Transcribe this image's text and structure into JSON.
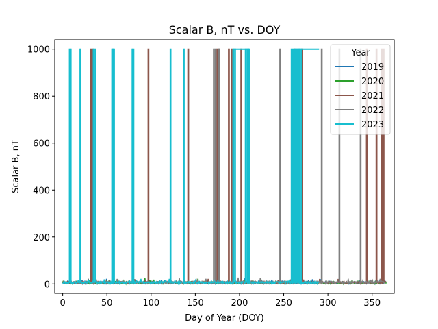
{
  "chart_data": {
    "type": "line",
    "title": "Scalar B, nT vs. DOY",
    "xlabel": "Day of Year (DOY)",
    "ylabel": "Scalar B, nT",
    "xlim": [
      -9,
      375
    ],
    "ylim": [
      -40,
      1040
    ],
    "xticks": [
      0,
      50,
      100,
      150,
      200,
      250,
      300,
      350
    ],
    "yticks": [
      0,
      200,
      400,
      600,
      800,
      1000
    ],
    "grid": false,
    "legend": {
      "title": "Year",
      "placement": "upper-right"
    },
    "baseline": 6,
    "series": [
      {
        "name": "2019",
        "color": "#1f77b4",
        "segments": [
          [
            0,
            365,
            6
          ]
        ],
        "spikes": []
      },
      {
        "name": "2020",
        "color": "#2ca02c",
        "segments": [
          [
            0,
            366,
            5
          ]
        ],
        "spikes": []
      },
      {
        "name": "2021",
        "color": "#8c564b",
        "segments": [
          [
            0,
            366,
            6
          ]
        ],
        "spikes": [
          32,
          34,
          97,
          142,
          175,
          177,
          188,
          191,
          202,
          271,
          344,
          355,
          361,
          363
        ],
        "plateaus": []
      },
      {
        "name": "2022",
        "color": "#7f7f7f",
        "segments": [
          [
            0,
            365,
            7
          ]
        ],
        "spikes": [
          171,
          173,
          177,
          246,
          262,
          293,
          313,
          337
        ],
        "plateaus": []
      },
      {
        "name": "2023",
        "color": "#17becf",
        "segments": [
          [
            0,
            290,
            6
          ]
        ],
        "spikes": [
          8,
          9,
          20,
          35,
          37,
          56,
          57,
          58,
          79,
          80,
          122,
          137,
          193,
          195,
          207,
          209,
          210,
          211,
          259,
          261,
          263,
          265,
          267,
          268,
          270
        ],
        "plateaus": [
          [
            193,
            211,
            1000
          ],
          [
            262,
            290,
            1000
          ]
        ]
      }
    ]
  }
}
